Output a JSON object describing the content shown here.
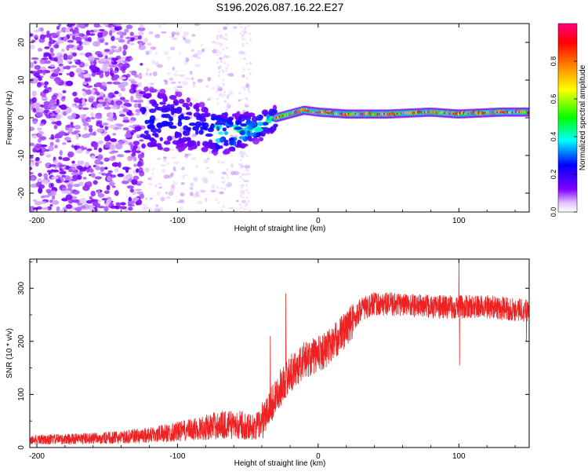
{
  "figure_title": "S196.2026.087.16.22.E27",
  "chart_data": [
    {
      "type": "heatmap",
      "title": "S196.2026.087.16.22.E27",
      "xlabel": "Height of straight line (km)",
      "ylabel": "Frequency (Hz)",
      "xlim": [
        -205,
        150
      ],
      "ylim": [
        -25,
        25
      ],
      "xticks": [
        -200,
        -100,
        0,
        100
      ],
      "yticks": [
        20,
        10,
        0,
        -10,
        -20
      ],
      "colorbar": {
        "label": "Normalized spectral amplitude",
        "range": [
          0,
          1
        ],
        "ticks": [
          0.0,
          0.2,
          0.4,
          0.6,
          0.8
        ],
        "tick_labels": [
          "0.0",
          "0.2",
          "0.4",
          "0.6",
          "0.8"
        ],
        "colors": [
          "#ffffff",
          "#8000ff",
          "#0000ff",
          "#00ffff",
          "#00ff00",
          "#ffff00",
          "#ff8000",
          "#ff0000",
          "#ff0080"
        ]
      },
      "features": [
        {
          "name": "diffuse low-amplitude noise",
          "x_range": [
            -205,
            -125
          ],
          "freq_range": [
            -25,
            25
          ],
          "amplitude": 0.1
        },
        {
          "name": "transition cluster",
          "x_range": [
            -125,
            -30
          ],
          "freq_range": [
            -10,
            10
          ],
          "amplitude": 0.3
        },
        {
          "name": "narrow band signal",
          "x_range": [
            -30,
            150
          ],
          "center_freq": 1.5,
          "amplitude": 0.85
        }
      ],
      "ridge": {
        "x": [
          -100,
          -90,
          -80,
          -70,
          -60,
          -50,
          -40,
          -30,
          -20,
          -10,
          0,
          20,
          50,
          80,
          100,
          130,
          150
        ],
        "freq": [
          -1,
          -2,
          -3,
          -4,
          -4,
          -3,
          -2,
          0,
          1,
          2,
          1.5,
          1,
          1,
          1.5,
          1,
          1.5,
          1.5
        ]
      }
    },
    {
      "type": "line",
      "xlabel": "Height of straight line (km)",
      "ylabel": "SNR (10 * v/v)",
      "xlim": [
        -205,
        150
      ],
      "ylim": [
        0,
        355
      ],
      "xticks": [
        -200,
        -100,
        0,
        100
      ],
      "yticks": [
        0,
        100,
        200,
        300
      ],
      "color": "#ee2222",
      "series": [
        {
          "name": "SNR",
          "envelope_x": [
            -205,
            -160,
            -140,
            -110,
            -90,
            -70,
            -55,
            -45,
            -40,
            -35,
            -30,
            -25,
            -20,
            -15,
            -10,
            0,
            10,
            20,
            25,
            30,
            40,
            60,
            80,
            100,
            120,
            140,
            150
          ],
          "envelope_y": [
            15,
            18,
            20,
            28,
            35,
            45,
            45,
            40,
            50,
            70,
            100,
            120,
            140,
            150,
            165,
            175,
            195,
            225,
            240,
            260,
            270,
            270,
            265,
            265,
            265,
            260,
            260
          ],
          "spikes": [
            {
              "x": -34,
              "y": 210
            },
            {
              "x": -23,
              "y": 290
            },
            {
              "x": 20,
              "y": 245
            },
            {
              "x": 100,
              "y": 355
            },
            {
              "x": 100.5,
              "y": 155
            },
            {
              "x": 148,
              "y": 200
            }
          ]
        }
      ]
    }
  ]
}
